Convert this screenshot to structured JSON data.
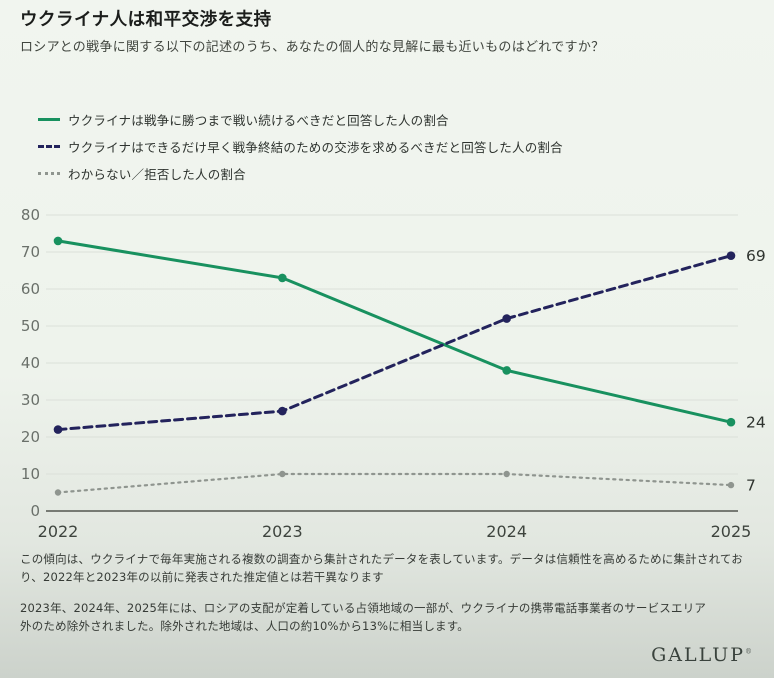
{
  "header": {
    "title": "ウクライナ人は和平交渉を支持",
    "subtitle": "ロシアとの戦争に関する以下の記述のうち、あなたの個人的な見解に最も近いものはどれですか？"
  },
  "legend": {
    "items": [
      {
        "label": "ウクライナは戦争に勝つまで戦い続けるべきだと回答した人の割合",
        "color": "#18915f",
        "style": "solid"
      },
      {
        "label": "ウクライナはできるだけ早く戦争終結のための交渉を求めるべきだと回答した人の割合",
        "color": "#23235c",
        "style": "dashed"
      },
      {
        "label": "わからない／拒否した人の割合",
        "color": "#8f958f",
        "style": "dotted"
      }
    ]
  },
  "chart_data": {
    "type": "line",
    "x": [
      2022,
      2023,
      2024,
      2025
    ],
    "series": [
      {
        "name": "ウクライナは戦争に勝つまで戦い続けるべきだと回答した人の割合",
        "values": [
          73,
          63,
          38,
          24
        ],
        "color": "#18915f",
        "style": "solid",
        "end_label": "24"
      },
      {
        "name": "ウクライナはできるだけ早く戦争終結のための交渉を求めるべきだと回答した人の割合",
        "values": [
          22,
          27,
          52,
          69
        ],
        "color": "#23235c",
        "style": "dashed",
        "end_label": "69"
      },
      {
        "name": "わからない／拒否した人の割合",
        "values": [
          5,
          10,
          10,
          7
        ],
        "color": "#8f958f",
        "style": "dotted",
        "end_label": "7"
      }
    ],
    "title": "ウクライナ人は和平交渉を支持",
    "xlabel": "",
    "ylabel": "",
    "ylim": [
      0,
      80
    ],
    "yticks": [
      0,
      10,
      20,
      30,
      40,
      50,
      60,
      70,
      80
    ],
    "grid": true,
    "legend_position": "top-left",
    "colors": {
      "gridline": "#dbe0d9",
      "axis_line": "#53564f",
      "ytick_text": "#6a706a",
      "xtick_text": "#3e443e"
    }
  },
  "footnotes": [
    "この傾向は、ウクライナで毎年実施される複数の調査から集計されたデータを表しています。データは信頼性を高めるために集計されており、2022年と2023年の以前に発表された推定値とは若干異なります",
    "2023年、2024年、2025年には、ロシアの支配が定着している占領地域の一部が、ウクライナの携帯電話事業者のサービスエリア外のため除外されました。除外された地域は、人口の約10%から13%に相当します。"
  ],
  "logo": {
    "text": "GALLUP",
    "mark": "®"
  }
}
